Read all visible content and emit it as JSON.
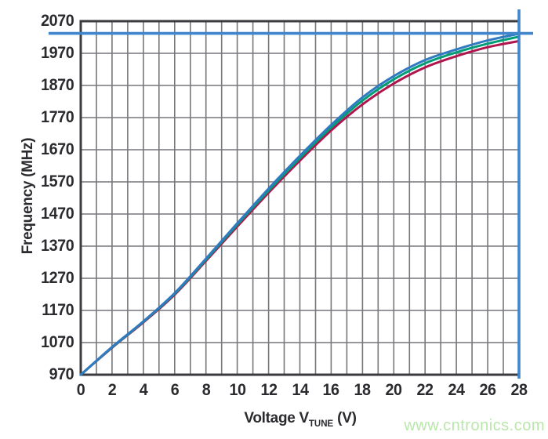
{
  "chart_data": {
    "type": "line",
    "title": "",
    "ylabel": "Frequency (MHz)",
    "xlabel": {
      "main": "Voltage V",
      "sub": "TUNE",
      "unit": "(V)"
    },
    "xlim": [
      0,
      28
    ],
    "ylim": [
      970,
      2070
    ],
    "x_grid_step_v": 1,
    "y_grid_step_mhz": 100,
    "x_tick_values": [
      0,
      2,
      4,
      6,
      8,
      10,
      12,
      14,
      16,
      18,
      20,
      22,
      24,
      26,
      28
    ],
    "x_tick_labels": [
      "0",
      "2",
      "4",
      "6",
      "8",
      "10",
      "12",
      "14",
      "16",
      "18",
      "20",
      "22",
      "24",
      "26",
      "28"
    ],
    "y_tick_values": [
      970,
      1070,
      1170,
      1270,
      1370,
      1470,
      1570,
      1670,
      1770,
      1870,
      1970,
      2070
    ],
    "y_tick_labels": [
      "970",
      "1070",
      "1170",
      "1270",
      "1370",
      "1470",
      "1570",
      "1670",
      "1770",
      "1870",
      "1970",
      "2070"
    ],
    "x": [
      0,
      2,
      4,
      6,
      8,
      10,
      12,
      14,
      16,
      18,
      20,
      22,
      24,
      26,
      28
    ],
    "series": [
      {
        "name": "curve-bottom-red",
        "color": "#b0164e",
        "values": [
          970,
          1054,
          1133,
          1219,
          1324,
          1431,
          1536,
          1636,
          1730,
          1811,
          1876,
          1926,
          1961,
          1989,
          2008
        ]
      },
      {
        "name": "curve-middle-green",
        "color": "#009d77",
        "values": [
          970,
          1055,
          1135,
          1222,
          1328,
          1437,
          1543,
          1644,
          1739,
          1823,
          1889,
          1939,
          1973,
          2000,
          2022
        ]
      },
      {
        "name": "curve-top-blue",
        "color": "#2f7ac0",
        "values": [
          970,
          1056,
          1136,
          1224,
          1331,
          1441,
          1549,
          1651,
          1747,
          1833,
          1899,
          1949,
          1982,
          2010,
          2031
        ]
      }
    ],
    "reference_lines": {
      "horizontal_mhz": 2032,
      "vertical_v": 28,
      "color": "#3f86cc"
    },
    "grid_on": true,
    "legend": "none"
  },
  "colors": {
    "grid": "#76777b",
    "border": "#3b3b3f",
    "text": "#2b2b2f",
    "background": "#ffffff",
    "watermark": "#b9e6ab"
  },
  "watermark": {
    "text": "www.cntronics.com"
  }
}
